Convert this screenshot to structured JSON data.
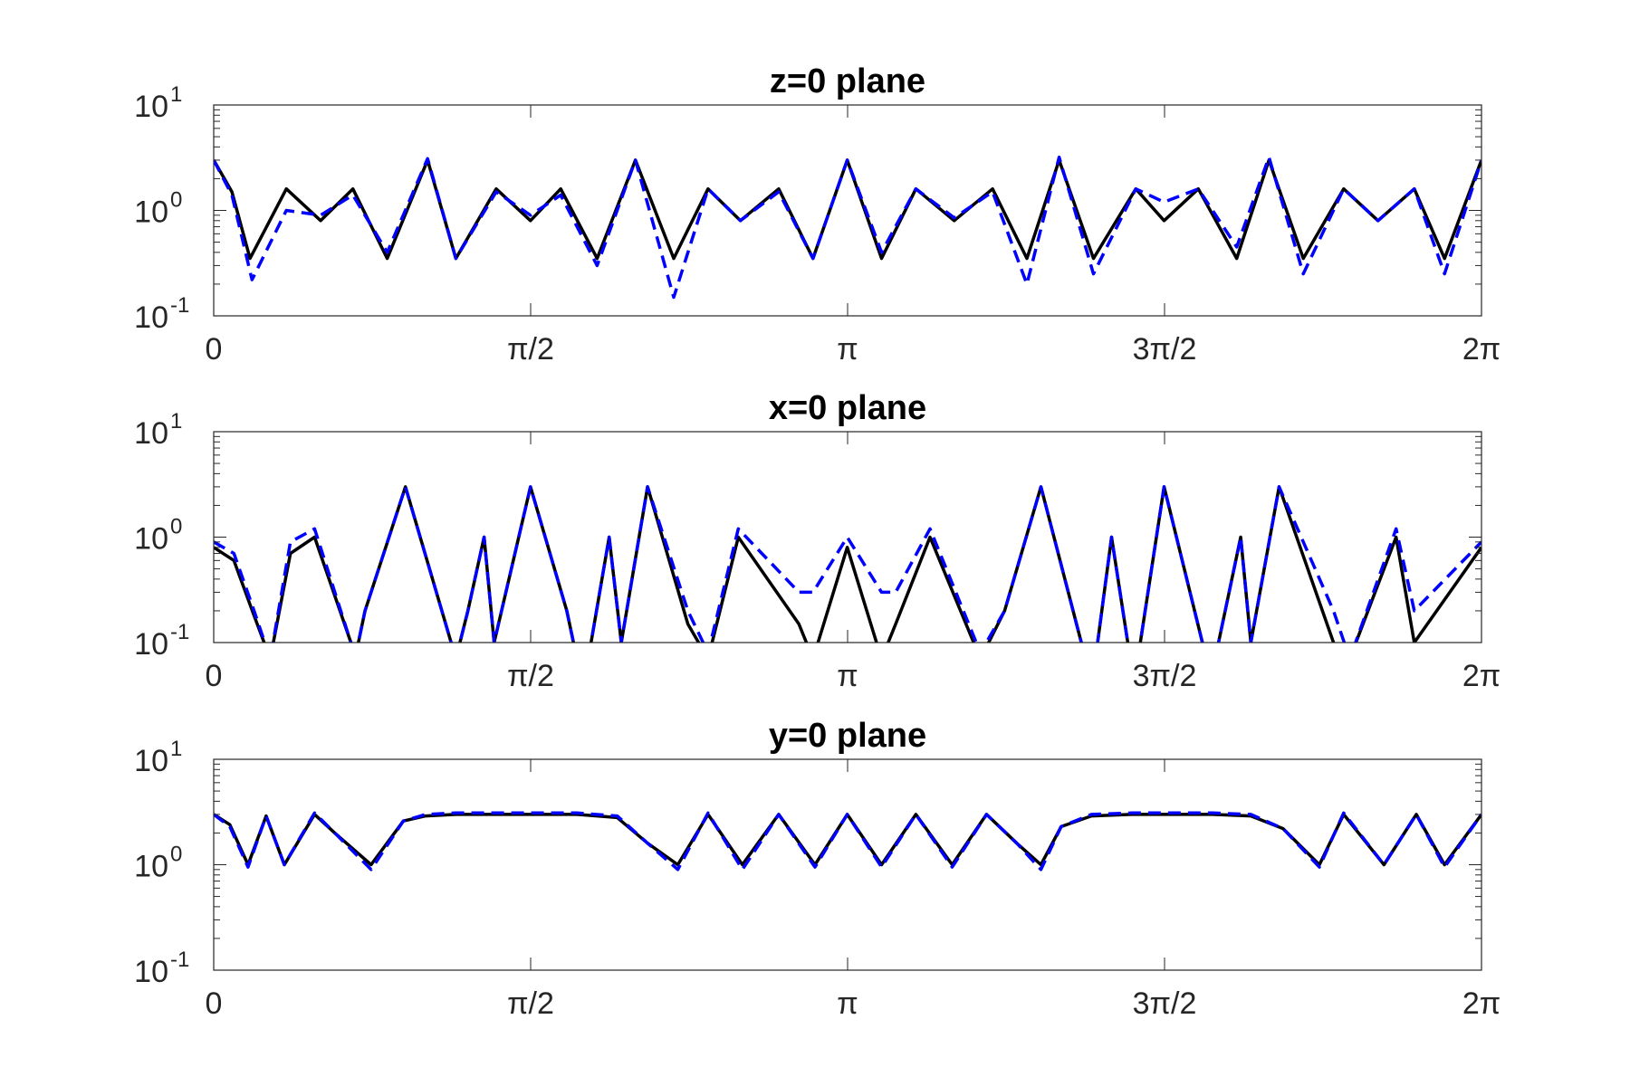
{
  "chart_data": [
    {
      "type": "line",
      "title": "z=0 plane",
      "xlim": [
        0,
        6.2832
      ],
      "ylim": [
        0.1,
        10
      ],
      "yscale": "log",
      "x_tick_labels": [
        "0",
        "π/2",
        "π",
        "3π/2",
        "2π"
      ],
      "y_tick_labels": [
        {
          "base": "10",
          "exp": "-1"
        },
        {
          "base": "10",
          "exp": "0"
        },
        {
          "base": "10",
          "exp": "1"
        }
      ],
      "grid": false,
      "series": [
        {
          "style": "solid",
          "color": "#000000",
          "x": [
            0,
            0.09,
            0.18,
            0.36,
            0.53,
            0.69,
            0.86,
            1.06,
            1.2,
            1.4,
            1.57,
            1.72,
            1.9,
            2.09,
            2.28,
            2.45,
            2.61,
            2.8,
            2.97,
            3.14,
            3.31,
            3.48,
            3.67,
            3.86,
            4.03,
            4.19,
            4.36,
            4.57,
            4.71,
            4.88,
            5.07,
            5.23,
            5.4,
            5.6,
            5.77,
            5.95,
            6.1,
            6.2832
          ],
          "y": [
            3.0,
            1.5,
            0.35,
            1.6,
            0.8,
            1.6,
            0.35,
            3.0,
            0.35,
            1.6,
            0.8,
            1.6,
            0.35,
            3.0,
            0.35,
            1.6,
            0.8,
            1.6,
            0.35,
            3.0,
            0.35,
            1.6,
            0.8,
            1.6,
            0.35,
            3.0,
            0.35,
            1.6,
            0.8,
            1.6,
            0.35,
            3.0,
            0.35,
            1.6,
            0.8,
            1.6,
            0.35,
            3.0
          ]
        },
        {
          "style": "dashed",
          "color": "#0000ff",
          "x": [
            0,
            0.09,
            0.19,
            0.36,
            0.53,
            0.69,
            0.86,
            1.06,
            1.2,
            1.4,
            1.57,
            1.72,
            1.9,
            2.09,
            2.28,
            2.45,
            2.61,
            2.8,
            2.97,
            3.14,
            3.31,
            3.48,
            3.67,
            3.86,
            4.03,
            4.19,
            4.36,
            4.57,
            4.71,
            4.88,
            5.07,
            5.23,
            5.4,
            5.6,
            5.77,
            5.95,
            6.1,
            6.2832
          ],
          "y": [
            3.0,
            1.4,
            0.22,
            1.0,
            0.9,
            1.4,
            0.4,
            3.1,
            0.35,
            1.5,
            0.9,
            1.4,
            0.3,
            3.0,
            0.15,
            1.6,
            0.8,
            1.5,
            0.35,
            3.0,
            0.4,
            1.6,
            0.85,
            1.5,
            0.2,
            3.2,
            0.25,
            1.6,
            1.2,
            1.6,
            0.45,
            3.2,
            0.25,
            1.6,
            0.8,
            1.6,
            0.25,
            3.0
          ]
        }
      ]
    },
    {
      "type": "line",
      "title": "x=0 plane",
      "xlim": [
        0,
        6.2832
      ],
      "ylim": [
        0.1,
        10
      ],
      "yscale": "log",
      "x_tick_labels": [
        "0",
        "π/2",
        "π",
        "3π/2",
        "2π"
      ],
      "y_tick_labels": [
        {
          "base": "10",
          "exp": "-1"
        },
        {
          "base": "10",
          "exp": "0"
        },
        {
          "base": "10",
          "exp": "1"
        }
      ],
      "grid": false,
      "series": [
        {
          "style": "solid",
          "color": "#000000",
          "x": [
            0,
            0.1,
            0.2,
            0.28,
            0.38,
            0.5,
            0.68,
            0.7,
            0.75,
            0.95,
            1.15,
            1.2,
            1.26,
            1.34,
            1.39,
            1.57,
            1.75,
            1.8,
            1.87,
            1.96,
            2.02,
            2.15,
            2.35,
            2.45,
            2.6,
            2.9,
            2.97,
            3.14,
            3.31,
            3.38,
            3.55,
            3.8,
            3.92,
            4.1,
            4.3,
            4.37,
            4.45,
            4.53,
            4.58,
            4.71,
            4.9,
            4.94,
            4.98,
            5.09,
            5.14,
            5.28,
            5.55,
            5.63,
            5.86,
            5.95,
            6.2832
          ],
          "y": [
            0.8,
            0.6,
            0.18,
            0.07,
            0.7,
            1.0,
            0.1,
            0.07,
            0.2,
            3.0,
            0.15,
            0.07,
            0.2,
            1.0,
            0.1,
            3.0,
            0.2,
            0.07,
            0.1,
            1.0,
            0.1,
            3.0,
            0.15,
            0.07,
            1.0,
            0.15,
            0.07,
            0.8,
            0.07,
            0.15,
            1.0,
            0.07,
            0.2,
            3.0,
            0.1,
            0.07,
            1.0,
            0.1,
            0.07,
            3.0,
            0.1,
            0.07,
            0.1,
            1.0,
            0.1,
            3.0,
            0.1,
            0.07,
            1.0,
            0.1,
            0.8
          ]
        },
        {
          "style": "dashed",
          "color": "#0000ff",
          "x": [
            0,
            0.1,
            0.2,
            0.28,
            0.38,
            0.5,
            0.68,
            0.7,
            0.75,
            0.95,
            1.15,
            1.2,
            1.26,
            1.34,
            1.39,
            1.57,
            1.75,
            1.8,
            1.87,
            1.96,
            2.02,
            2.15,
            2.35,
            2.45,
            2.6,
            2.9,
            2.97,
            3.14,
            3.31,
            3.38,
            3.55,
            3.8,
            3.92,
            4.1,
            4.3,
            4.37,
            4.45,
            4.53,
            4.58,
            4.71,
            4.9,
            4.94,
            4.98,
            5.09,
            5.14,
            5.28,
            5.55,
            5.63,
            5.86,
            5.95,
            6.2832
          ],
          "y": [
            0.9,
            0.7,
            0.2,
            0.07,
            0.9,
            1.2,
            0.1,
            0.07,
            0.2,
            3.0,
            0.15,
            0.07,
            0.2,
            1.0,
            0.1,
            3.0,
            0.2,
            0.07,
            0.1,
            1.0,
            0.1,
            3.0,
            0.2,
            0.08,
            1.2,
            0.3,
            0.3,
            1.0,
            0.3,
            0.3,
            1.2,
            0.08,
            0.2,
            3.0,
            0.1,
            0.07,
            1.0,
            0.1,
            0.07,
            3.0,
            0.1,
            0.07,
            0.1,
            1.0,
            0.1,
            3.0,
            0.2,
            0.07,
            1.2,
            0.2,
            0.9
          ]
        }
      ]
    },
    {
      "type": "line",
      "title": "y=0 plane",
      "xlim": [
        0,
        6.2832
      ],
      "ylim": [
        0.1,
        10
      ],
      "yscale": "log",
      "x_tick_labels": [
        "0",
        "π/2",
        "π",
        "3π/2",
        "2π"
      ],
      "y_tick_labels": [
        {
          "base": "10",
          "exp": "-1"
        },
        {
          "base": "10",
          "exp": "0"
        },
        {
          "base": "10",
          "exp": "1"
        }
      ],
      "grid": false,
      "series": [
        {
          "style": "solid",
          "color": "#000000",
          "x": [
            0,
            0.08,
            0.17,
            0.26,
            0.35,
            0.5,
            0.6,
            0.78,
            0.94,
            1.05,
            1.2,
            1.4,
            1.6,
            1.8,
            2.0,
            2.15,
            2.3,
            2.45,
            2.62,
            2.8,
            2.98,
            3.14,
            3.31,
            3.48,
            3.66,
            3.83,
            3.98,
            4.1,
            4.2,
            4.35,
            4.55,
            4.75,
            4.95,
            5.14,
            5.3,
            5.48,
            5.6,
            5.8,
            5.96,
            6.1,
            6.2832
          ],
          "y": [
            3.0,
            2.4,
            1.0,
            2.9,
            1.0,
            3.0,
            2.0,
            1.0,
            2.6,
            2.9,
            3.0,
            3.0,
            3.0,
            3.0,
            2.8,
            1.6,
            1.0,
            3.0,
            1.0,
            3.0,
            1.0,
            3.0,
            1.0,
            3.0,
            1.0,
            3.0,
            1.6,
            1.0,
            2.3,
            2.9,
            3.0,
            3.0,
            3.0,
            2.9,
            2.2,
            1.0,
            3.0,
            1.0,
            3.0,
            1.0,
            3.0
          ]
        },
        {
          "style": "dashed",
          "color": "#0000ff",
          "x": [
            0,
            0.08,
            0.17,
            0.26,
            0.35,
            0.5,
            0.6,
            0.78,
            0.94,
            1.05,
            1.2,
            1.4,
            1.6,
            1.8,
            2.0,
            2.15,
            2.3,
            2.45,
            2.62,
            2.8,
            2.98,
            3.14,
            3.31,
            3.48,
            3.66,
            3.83,
            3.98,
            4.1,
            4.2,
            4.35,
            4.55,
            4.75,
            4.95,
            5.14,
            5.3,
            5.48,
            5.6,
            5.8,
            5.96,
            6.1,
            6.2832
          ],
          "y": [
            3.0,
            2.3,
            0.95,
            2.9,
            1.0,
            3.1,
            2.0,
            0.9,
            2.6,
            3.0,
            3.1,
            3.1,
            3.1,
            3.1,
            2.9,
            1.6,
            0.9,
            3.1,
            0.9,
            3.0,
            0.95,
            3.0,
            0.95,
            3.0,
            0.95,
            3.0,
            1.6,
            0.9,
            2.3,
            3.0,
            3.1,
            3.1,
            3.1,
            3.0,
            2.2,
            0.95,
            3.1,
            1.0,
            3.0,
            0.95,
            3.0
          ]
        }
      ]
    }
  ]
}
